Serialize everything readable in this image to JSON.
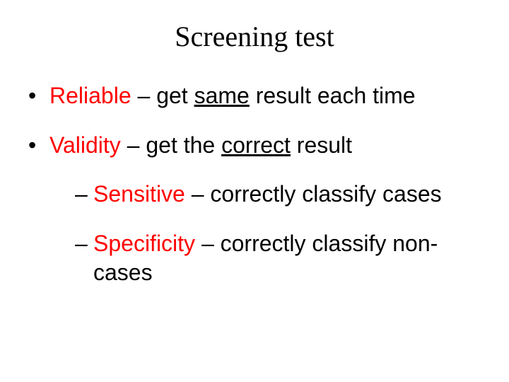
{
  "title": "Screening test",
  "bullets": {
    "b1_term": "Reliable",
    "b1_sep": " – get ",
    "b1_u": "same",
    "b1_rest": " result each time",
    "b2_term": "Validity",
    "b2_sep": " – get the ",
    "b2_u": "correct",
    "b2_rest": " result",
    "s1_term": "Sensitive",
    "s1_rest": " – correctly classify cases",
    "s2_term": "Specificity",
    "s2_rest": " – correctly classify non-cases"
  },
  "colors": {
    "term": "#ff0000",
    "text": "#000000",
    "background": "#ffffff"
  },
  "fonts": {
    "title_family": "Georgia, serif",
    "body_family": "Arial, sans-serif",
    "title_size_pt": 30,
    "body_size_pt": 24
  }
}
